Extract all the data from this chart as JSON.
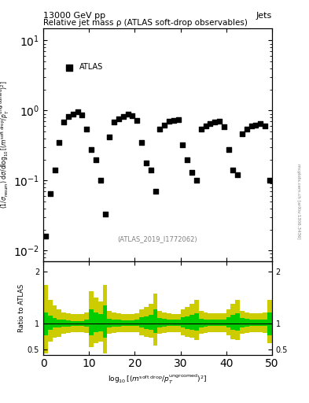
{
  "title_top": "13000 GeV pp",
  "title_right": "Jets",
  "plot_title": "Relative jet mass ρ (ATLAS soft-drop observables)",
  "legend_label": "ATLAS",
  "ylabel_main": "(1/σ_resum) dσ/d log₁₀[(m^{soft drop}/p_T^{ungroomed})^2]",
  "ylabel_ratio": "Ratio to ATLAS",
  "xlabel": "log₁₀[(m^{soft drop}/p_T^{ungroomed})^2]",
  "watermark": "(ATLAS_2019_I1772062)",
  "right_label": "mcplots.cern.ch [arXiv:1306.3436]",
  "xlim": [
    0,
    50
  ],
  "ylim_main": [
    0.007,
    15
  ],
  "ylim_ratio": [
    0.4,
    2.2
  ],
  "data_x": [
    0.5,
    1.5,
    2.5,
    3.5,
    4.5,
    5.5,
    6.5,
    7.5,
    8.5,
    9.5,
    10.5,
    11.5,
    12.5,
    13.5,
    14.5,
    15.5,
    16.5,
    17.5,
    18.5,
    19.5,
    20.5,
    21.5,
    22.5,
    23.5,
    24.5,
    25.5,
    26.5,
    27.5,
    28.5,
    29.5,
    30.5,
    31.5,
    32.5,
    33.5,
    34.5,
    35.5,
    36.5,
    37.5,
    38.5,
    39.5,
    40.5,
    41.5,
    42.5,
    43.5,
    44.5,
    45.5,
    46.5,
    47.5,
    48.5,
    49.5
  ],
  "data_y": [
    0.016,
    0.065,
    0.14,
    0.35,
    0.68,
    0.82,
    0.9,
    0.95,
    0.87,
    0.55,
    0.28,
    0.2,
    0.1,
    0.033,
    0.42,
    0.68,
    0.77,
    0.82,
    0.88,
    0.85,
    0.72,
    0.35,
    0.18,
    0.14,
    0.07,
    0.55,
    0.62,
    0.7,
    0.73,
    0.75,
    0.32,
    0.2,
    0.13,
    0.1,
    0.55,
    0.6,
    0.65,
    0.68,
    0.7,
    0.58,
    0.28,
    0.14,
    0.12,
    0.47,
    0.55,
    0.6,
    0.62,
    0.65,
    0.6,
    0.1
  ],
  "ratio_x": [
    0.5,
    1.5,
    2.5,
    3.5,
    4.5,
    5.5,
    6.5,
    7.5,
    8.5,
    9.5,
    10.5,
    11.5,
    12.5,
    13.5,
    14.5,
    15.5,
    16.5,
    17.5,
    18.5,
    19.5,
    20.5,
    21.5,
    22.5,
    23.5,
    24.5,
    25.5,
    26.5,
    27.5,
    28.5,
    29.5,
    30.5,
    31.5,
    32.5,
    33.5,
    34.5,
    35.5,
    36.5,
    37.5,
    38.5,
    39.5,
    40.5,
    41.5,
    42.5,
    43.5,
    44.5,
    45.5,
    46.5,
    47.5,
    48.5,
    49.5
  ],
  "ratio_green_lo": [
    0.78,
    0.88,
    0.92,
    0.93,
    0.94,
    0.94,
    0.95,
    0.95,
    0.95,
    0.94,
    0.78,
    0.83,
    0.85,
    0.72,
    0.93,
    0.94,
    0.94,
    0.95,
    0.95,
    0.95,
    0.95,
    0.92,
    0.9,
    0.88,
    0.82,
    0.93,
    0.94,
    0.95,
    0.95,
    0.95,
    0.92,
    0.9,
    0.88,
    0.86,
    0.93,
    0.94,
    0.95,
    0.95,
    0.95,
    0.95,
    0.92,
    0.88,
    0.87,
    0.93,
    0.94,
    0.95,
    0.95,
    0.95,
    0.95,
    0.78
  ],
  "ratio_green_hi": [
    1.22,
    1.15,
    1.1,
    1.08,
    1.07,
    1.06,
    1.05,
    1.05,
    1.05,
    1.08,
    1.28,
    1.22,
    1.18,
    1.35,
    1.09,
    1.08,
    1.07,
    1.06,
    1.06,
    1.06,
    1.07,
    1.12,
    1.14,
    1.17,
    1.28,
    1.1,
    1.09,
    1.08,
    1.07,
    1.07,
    1.12,
    1.14,
    1.17,
    1.2,
    1.09,
    1.08,
    1.07,
    1.07,
    1.07,
    1.07,
    1.12,
    1.17,
    1.2,
    1.1,
    1.09,
    1.08,
    1.07,
    1.07,
    1.08,
    1.22
  ],
  "ratio_yellow_lo": [
    0.42,
    0.65,
    0.72,
    0.75,
    0.8,
    0.82,
    0.84,
    0.84,
    0.84,
    0.82,
    0.55,
    0.62,
    0.65,
    0.42,
    0.8,
    0.82,
    0.84,
    0.84,
    0.84,
    0.84,
    0.84,
    0.78,
    0.75,
    0.72,
    0.58,
    0.8,
    0.82,
    0.84,
    0.84,
    0.84,
    0.78,
    0.75,
    0.72,
    0.68,
    0.8,
    0.82,
    0.84,
    0.84,
    0.84,
    0.84,
    0.78,
    0.7,
    0.68,
    0.8,
    0.82,
    0.84,
    0.84,
    0.84,
    0.82,
    0.62
  ],
  "ratio_yellow_hi": [
    1.75,
    1.45,
    1.35,
    1.28,
    1.22,
    1.2,
    1.18,
    1.18,
    1.18,
    1.22,
    1.62,
    1.5,
    1.42,
    1.75,
    1.25,
    1.22,
    1.2,
    1.18,
    1.18,
    1.18,
    1.2,
    1.28,
    1.32,
    1.38,
    1.58,
    1.25,
    1.22,
    1.2,
    1.18,
    1.18,
    1.28,
    1.32,
    1.38,
    1.45,
    1.25,
    1.22,
    1.2,
    1.2,
    1.2,
    1.2,
    1.28,
    1.38,
    1.45,
    1.25,
    1.22,
    1.2,
    1.2,
    1.2,
    1.22,
    1.45
  ],
  "marker_color": "#000000",
  "green_color": "#00cc00",
  "yellow_color": "#cccc00",
  "xticks": [
    0,
    10,
    20,
    30,
    40,
    50
  ],
  "yticks_ratio": [
    0.5,
    1.0,
    2.0
  ]
}
